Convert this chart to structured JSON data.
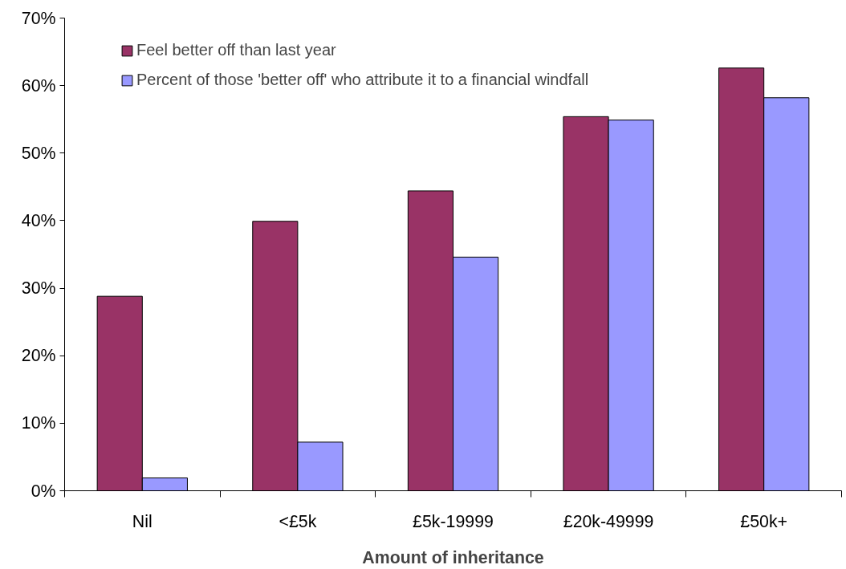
{
  "chart_data": {
    "type": "bar",
    "xlabel": "Amount of inheritance",
    "categories": [
      "Nil",
      "<£5k",
      "£5k-19999",
      "£20k-49999",
      "£50k+"
    ],
    "series": [
      {
        "name": "Feel better off than last year",
        "color": "#993366",
        "values": [
          28.8,
          39.9,
          44.4,
          55.4,
          62.6
        ]
      },
      {
        "name": "Percent of those 'better off' who attribute it to a financial windfall",
        "color": "#9999ff",
        "values": [
          1.9,
          7.2,
          34.6,
          54.9,
          58.2
        ]
      }
    ],
    "ylim": [
      0,
      70
    ],
    "yticks": [
      {
        "value": 0,
        "label": "0%"
      },
      {
        "value": 10,
        "label": "10%"
      },
      {
        "value": 20,
        "label": "20%"
      },
      {
        "value": 30,
        "label": "30%"
      },
      {
        "value": 40,
        "label": "40%"
      },
      {
        "value": 50,
        "label": "50%"
      },
      {
        "value": 60,
        "label": "60%"
      },
      {
        "value": 70,
        "label": "70%"
      }
    ],
    "grid": false,
    "legend": "top left"
  }
}
